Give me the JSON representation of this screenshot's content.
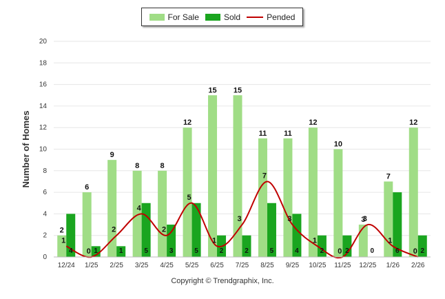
{
  "chart_data": {
    "type": "bar",
    "title": "",
    "xlabel": "",
    "ylabel": "Number of Homes",
    "ylim": [
      0,
      20
    ],
    "yticks": [
      "0",
      "2",
      "4",
      "6",
      "8",
      "10",
      "12",
      "14",
      "16",
      "18",
      "20"
    ],
    "categories": [
      "12/24",
      "1/25",
      "2/25",
      "3/25",
      "4/25",
      "5/25",
      "6/25",
      "7/25",
      "8/25",
      "9/25",
      "10/25",
      "11/25",
      "12/25",
      "1/26",
      "2/26"
    ],
    "series": [
      {
        "name": "For Sale",
        "kind": "bar",
        "color": "#a0dd86",
        "values": [
          2,
          6,
          9,
          8,
          8,
          12,
          15,
          15,
          11,
          11,
          12,
          10,
          3,
          7,
          12
        ]
      },
      {
        "name": "Sold",
        "kind": "bar",
        "color": "#1aa51f",
        "values": [
          4,
          1,
          1,
          5,
          3,
          5,
          2,
          2,
          5,
          4,
          2,
          2,
          0,
          6,
          2
        ]
      },
      {
        "name": "Pended",
        "kind": "line",
        "color": "#c00000",
        "values": [
          1,
          0,
          2,
          4,
          2,
          5,
          1,
          3,
          7,
          3,
          1,
          0,
          3,
          1,
          0
        ]
      }
    ],
    "legend_position": "top-center",
    "grid": true
  },
  "copyright": "Copyright © Trendgraphix, Inc."
}
